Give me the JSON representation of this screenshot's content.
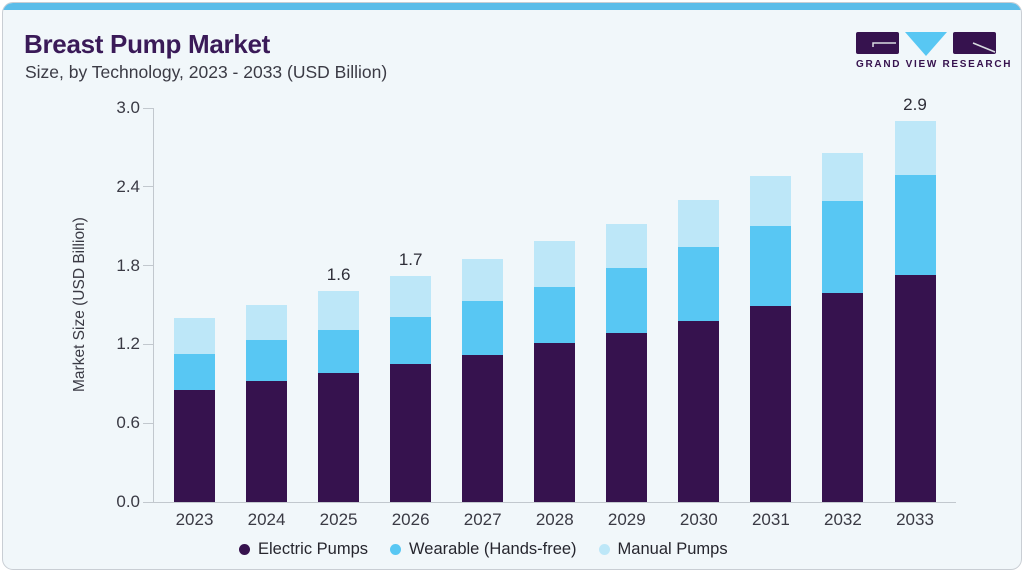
{
  "header": {
    "title": "Breast Pump Market",
    "subtitle": "Size, by Technology, 2023 - 2033 (USD Billion)",
    "logo_text": "GRAND VIEW RESEARCH"
  },
  "colors": {
    "accent_strip": "#5bbde9",
    "title_text": "#3a1a58",
    "card_background": "#f1f7fa",
    "card_border": "#c9ced4",
    "axis_line": "#c2c8ce",
    "logo_purple": "#36124e",
    "logo_blue": "#58c7f3"
  },
  "chart_data": {
    "type": "bar",
    "stacked": true,
    "title": "Breast Pump Market Size, by Technology, 2023 - 2033 (USD Billion)",
    "xlabel": "",
    "ylabel": "Market Size (USD Billion)",
    "ylim": [
      0,
      3.0
    ],
    "yticks": [
      "0.0",
      "0.6",
      "1.2",
      "1.8",
      "2.4",
      "3.0"
    ],
    "grid": false,
    "legend_position": "bottom",
    "categories": [
      "2023",
      "2024",
      "2025",
      "2026",
      "2027",
      "2028",
      "2029",
      "2030",
      "2031",
      "2032",
      "2033"
    ],
    "series": [
      {
        "name": "Electric Pumps",
        "color": "#36124e",
        "values": [
          0.85,
          0.92,
          0.98,
          1.05,
          1.12,
          1.21,
          1.29,
          1.38,
          1.49,
          1.59,
          1.73
        ]
      },
      {
        "name": "Wearable (Hands-free)",
        "color": "#58c7f3",
        "values": [
          0.28,
          0.31,
          0.33,
          0.36,
          0.41,
          0.43,
          0.49,
          0.56,
          0.61,
          0.7,
          0.76
        ]
      },
      {
        "name": "Manual Pumps",
        "color": "#bde7f8",
        "values": [
          0.27,
          0.27,
          0.3,
          0.31,
          0.32,
          0.35,
          0.34,
          0.36,
          0.38,
          0.37,
          0.41
        ]
      }
    ],
    "totals": [
      1.4,
      1.5,
      1.61,
      1.72,
      1.85,
      1.99,
      2.12,
      2.3,
      2.48,
      2.66,
      2.9
    ],
    "bar_labels": [
      "",
      "",
      "1.6",
      "1.7",
      "",
      "",
      "",
      "",
      "",
      "",
      "2.9"
    ]
  }
}
